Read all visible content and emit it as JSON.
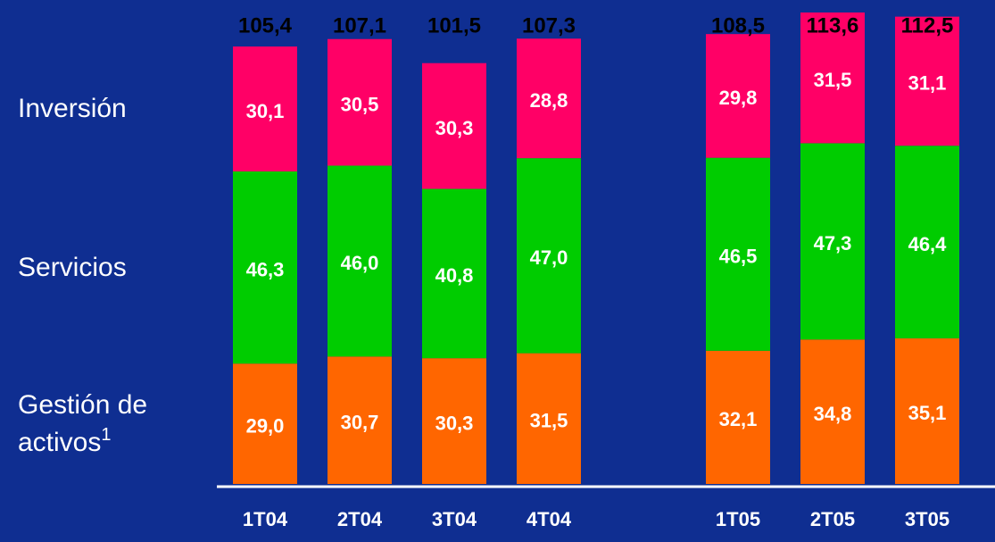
{
  "chart_data": {
    "type": "stacked_bar",
    "categories": [
      "1T04",
      "2T04",
      "3T04",
      "4T04",
      null,
      "1T05",
      "2T05",
      "3T05"
    ],
    "series": [
      {
        "name": "Gestión de activos",
        "name_note": "1",
        "color": "#ff6600",
        "values": [
          29.0,
          30.7,
          30.3,
          31.5,
          null,
          32.1,
          34.8,
          35.1
        ],
        "value_labels": [
          "29,0",
          "30,7",
          "30,3",
          "31,5",
          null,
          "32,1",
          "34,8",
          "35,1"
        ]
      },
      {
        "name": "Servicios",
        "color": "#00cc00",
        "values": [
          46.3,
          46.0,
          40.8,
          47.0,
          null,
          46.5,
          47.3,
          46.4
        ],
        "value_labels": [
          "46,3",
          "46,0",
          "40,8",
          "47,0",
          null,
          "46,5",
          "47,3",
          "46,4"
        ]
      },
      {
        "name": "Inversión",
        "color": "#ff0066",
        "values": [
          30.1,
          30.5,
          30.3,
          28.8,
          null,
          29.8,
          31.5,
          31.1
        ],
        "value_labels": [
          "30,1",
          "30,5",
          "30,3",
          "28,8",
          null,
          "29,8",
          "31,5",
          "31,1"
        ]
      }
    ],
    "totals": [
      105.4,
      107.1,
      101.5,
      107.3,
      null,
      108.5,
      113.6,
      112.5
    ],
    "total_labels": [
      "105,4",
      "107,1",
      "101,5",
      "107,3",
      null,
      "108,5",
      "113,6",
      "112,5"
    ]
  }
}
